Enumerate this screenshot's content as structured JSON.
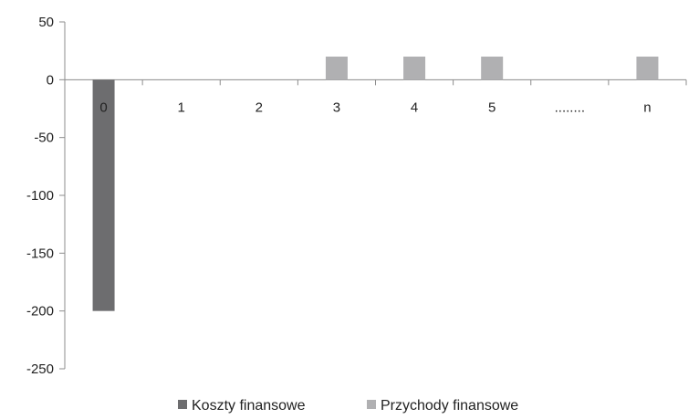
{
  "chart_data": {
    "type": "bar",
    "categories": [
      "0",
      "1",
      "2",
      "3",
      "4",
      "5",
      "........",
      "n"
    ],
    "series": [
      {
        "name": "Koszty finansowe",
        "color": "#6d6d6f",
        "values": [
          -200,
          0,
          0,
          0,
          0,
          0,
          0,
          0
        ]
      },
      {
        "name": "Przychody finansowe",
        "color": "#b0b0b2",
        "values": [
          0,
          0,
          0,
          20,
          20,
          20,
          0,
          20
        ]
      }
    ],
    "ylim": [
      -250,
      50
    ],
    "yticks": [
      50,
      0,
      -50,
      -100,
      -150,
      -200,
      -250
    ],
    "title": "",
    "xlabel": "",
    "ylabel": "",
    "grid": false,
    "legend": "bottom"
  }
}
